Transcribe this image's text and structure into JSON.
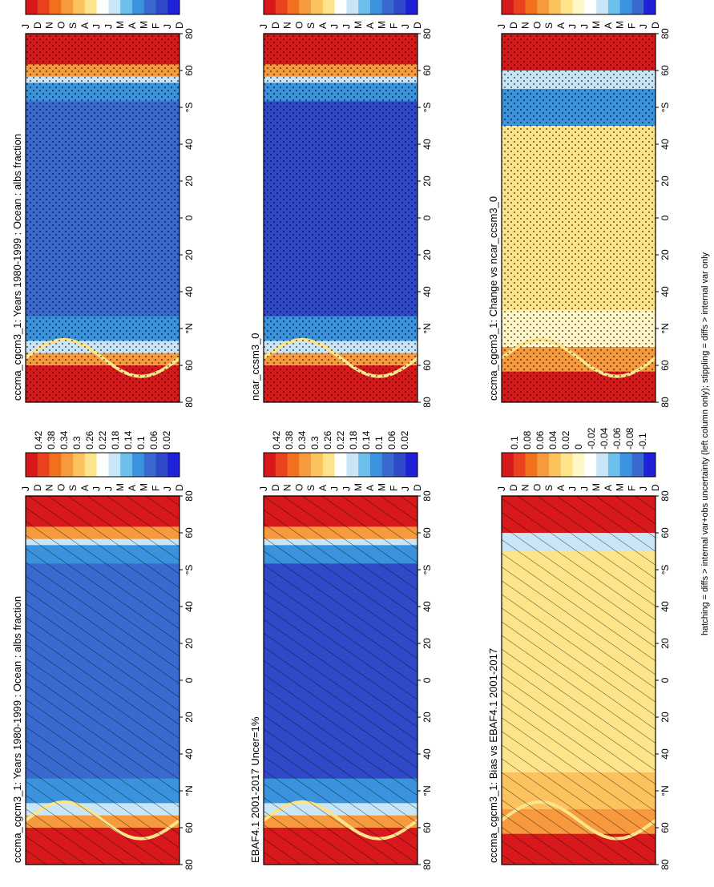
{
  "footer": "hatching = diffs > internal var+obs uncertainty (left column only); stippling = diffs > internal var only",
  "month_ticks": [
    "D",
    "J",
    "F",
    "M",
    "A",
    "M",
    "J",
    "J",
    "A",
    "S",
    "O",
    "N",
    "D",
    "J"
  ],
  "lat_ticks": [
    "80",
    "60",
    "°N",
    "40",
    "20",
    "0",
    "20",
    "40",
    "°S",
    "60",
    "80"
  ],
  "colors": {
    "abs_scale": [
      "#d7191c",
      "#e8431e",
      "#f0701d",
      "#f79a3e",
      "#fbc25e",
      "#fde48a",
      "#ffffff",
      "#c8e6f8",
      "#6ec0ec",
      "#3a93dc",
      "#3a6ad0",
      "#2f49c8",
      "#2020d8"
    ],
    "diff_scale": [
      "#d7191c",
      "#e8431e",
      "#f0701d",
      "#f79a3e",
      "#fbc25e",
      "#fde48a",
      "#fff7c8",
      "#ffffff",
      "#c8e6f8",
      "#6ec0ec",
      "#3a93dc",
      "#3a6ad0",
      "#2020d8"
    ]
  },
  "colorbar_abs": [
    "0.42",
    "0.38",
    "0.34",
    "0.3",
    "0.26",
    "0.22",
    "0.18",
    "0.14",
    "0.1",
    "0.06",
    "0.02"
  ],
  "colorbar_diff": [
    "0.1",
    "0.08",
    "0.06",
    "0.04",
    "0.02",
    "0",
    "-0.02",
    "-0.04",
    "-0.06",
    "-0.08",
    "-0.1"
  ],
  "chart_data": [
    {
      "type": "heatmap",
      "title": "cccma_cgcm3_1: Years 1980-1999 : Ocean : albs fraction",
      "x": "month",
      "y": "latitude",
      "scale": "abs",
      "overlay": "hatching"
    },
    {
      "type": "heatmap",
      "title": "cccma_cgcm3_1: Years 1980-1999 : Ocean : albs fraction",
      "x": "month",
      "y": "latitude",
      "scale": "abs",
      "overlay": "stippling"
    },
    {
      "type": "heatmap",
      "title": "EBAF4.1 2001-2017 Uncer=1%",
      "x": "month",
      "y": "latitude",
      "scale": "abs",
      "overlay": "hatching"
    },
    {
      "type": "heatmap",
      "title": "ncar_ccsm3_0",
      "x": "month",
      "y": "latitude",
      "scale": "abs",
      "overlay": "stippling"
    },
    {
      "type": "heatmap",
      "title": "cccma_cgcm3_1: Bias vs EBAF4.1 2001-2017",
      "x": "month",
      "y": "latitude",
      "scale": "diff",
      "overlay": "hatching"
    },
    {
      "type": "heatmap",
      "title": "cccma_cgcm3_1: Change vs ncar_ccsm3_0",
      "x": "month",
      "y": "latitude",
      "scale": "diff",
      "overlay": "stippling"
    }
  ]
}
